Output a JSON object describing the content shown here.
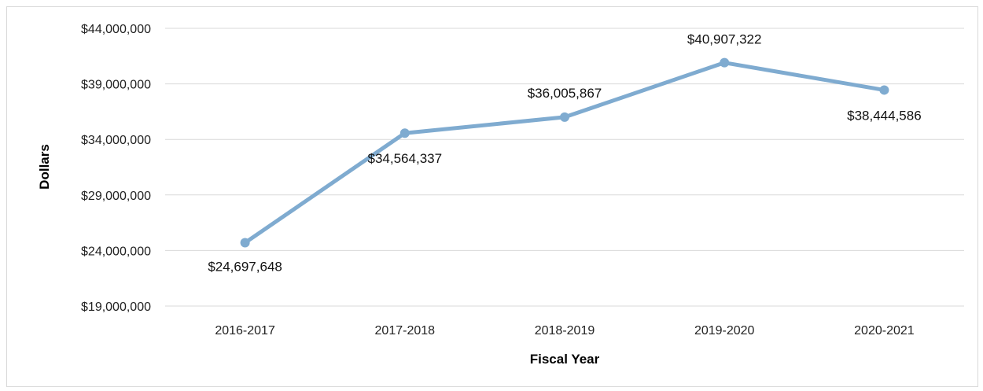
{
  "chart_data": {
    "type": "line",
    "title": "",
    "xlabel": "Fiscal Year",
    "ylabel": "Dollars",
    "categories": [
      "2016-2017",
      "2017-2018",
      "2018-2019",
      "2019-2020",
      "2020-2021"
    ],
    "values": [
      24697648,
      34564337,
      36005867,
      40907322,
      38444586
    ],
    "data_labels": [
      "$24,697,648",
      "$34,564,337",
      "$36,005,867",
      "$40,907,322",
      "$38,444,586"
    ],
    "ylim": [
      19000000,
      44000000
    ],
    "yticks": [
      19000000,
      24000000,
      29000000,
      34000000,
      39000000,
      44000000
    ],
    "ytick_labels": [
      "$19,000,000",
      "$24,000,000",
      "$29,000,000",
      "$34,000,000",
      "$39,000,000",
      "$44,000,000"
    ],
    "grid": true,
    "legend": "none",
    "line_color": "#7fabd0"
  }
}
